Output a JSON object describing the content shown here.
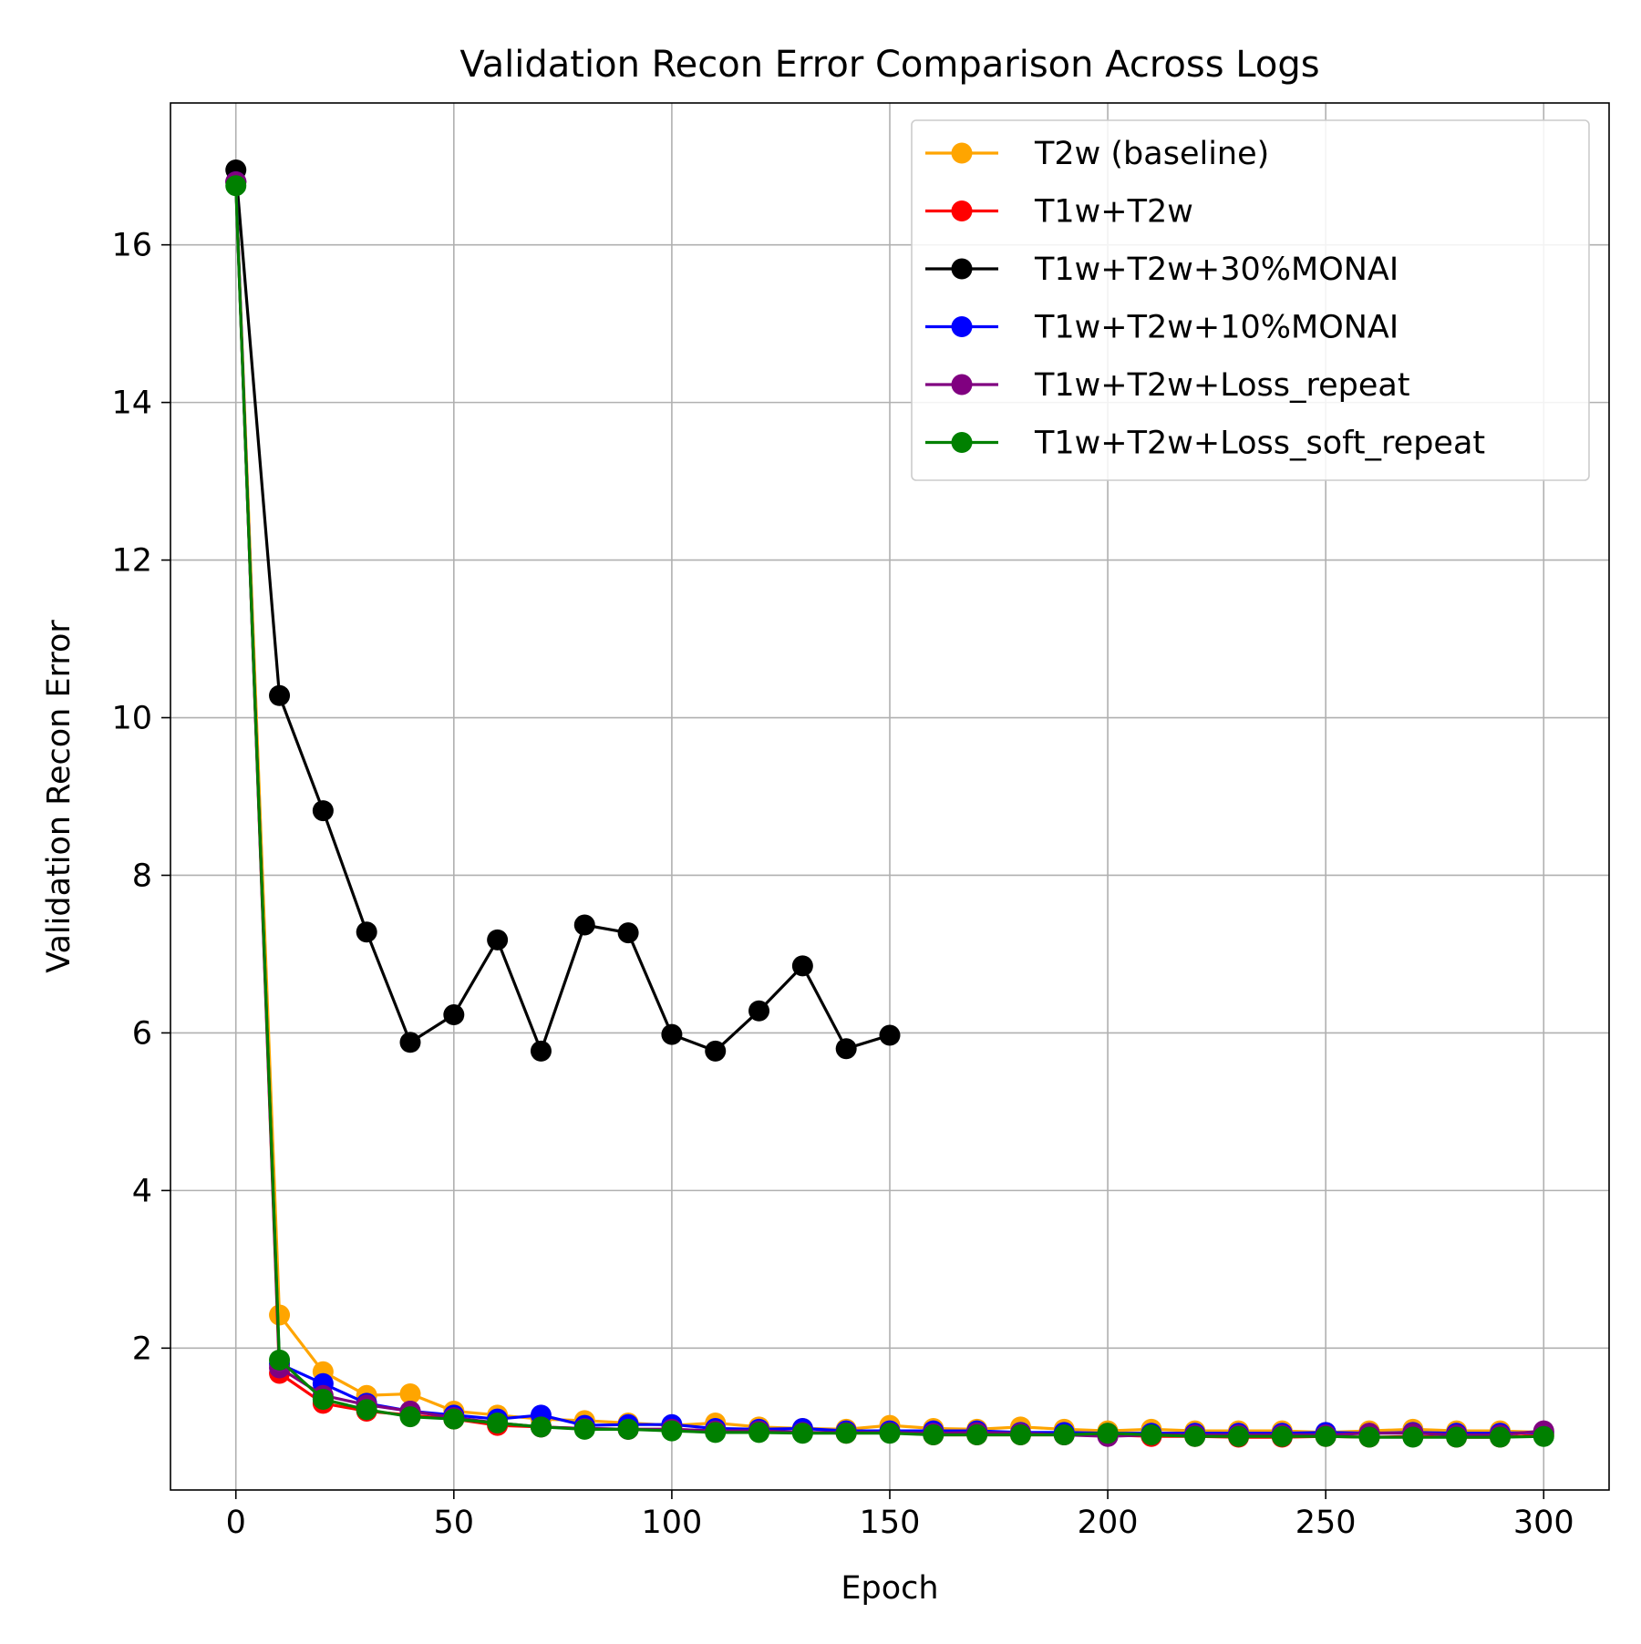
{
  "chart_data": {
    "type": "line",
    "title": "Validation Recon Error Comparison Across Logs",
    "xlabel": "Epoch",
    "ylabel": "Validation Recon Error",
    "xlim": [
      -15,
      315
    ],
    "ylim": [
      0.2,
      17.8
    ],
    "xticks": [
      0,
      50,
      100,
      150,
      200,
      250,
      300
    ],
    "yticks": [
      2,
      4,
      6,
      8,
      10,
      12,
      14,
      16
    ],
    "grid": true,
    "legend_position": "top-right",
    "series": [
      {
        "name": "T2w (baseline)",
        "color": "#ffa500",
        "x": [
          0,
          10,
          20,
          30,
          40,
          50,
          60,
          70,
          80,
          90,
          100,
          110,
          120,
          130,
          140,
          150,
          160,
          170,
          180,
          190,
          200,
          210,
          220,
          230,
          240,
          250,
          260,
          270,
          280,
          290,
          300
        ],
        "y": [
          16.8,
          2.42,
          1.7,
          1.4,
          1.42,
          1.2,
          1.15,
          1.1,
          1.08,
          1.05,
          1.02,
          1.05,
          1.0,
          0.98,
          0.97,
          1.02,
          0.98,
          0.97,
          1.0,
          0.97,
          0.95,
          0.97,
          0.95,
          0.95,
          0.95,
          0.93,
          0.95,
          0.97,
          0.95,
          0.95,
          0.93
        ]
      },
      {
        "name": "T1w+T2w",
        "color": "#ff0000",
        "x": [
          0,
          10,
          20,
          30,
          40,
          50,
          60,
          70,
          80,
          90,
          100,
          110,
          120,
          130,
          140,
          150,
          160,
          170,
          180,
          190,
          200,
          210,
          220,
          230,
          240,
          250,
          260,
          270,
          280,
          290,
          300
        ],
        "y": [
          16.8,
          1.68,
          1.3,
          1.2,
          1.15,
          1.1,
          1.02,
          1.0,
          0.98,
          0.97,
          0.97,
          0.95,
          0.95,
          0.93,
          0.92,
          0.93,
          0.9,
          0.9,
          0.9,
          0.9,
          0.9,
          0.88,
          0.88,
          0.87,
          0.87,
          0.88,
          0.87,
          0.88,
          0.87,
          0.87,
          0.9
        ]
      },
      {
        "name": "T1w+T2w+30%MONAI",
        "color": "#000000",
        "x": [
          0,
          10,
          20,
          30,
          40,
          50,
          60,
          70,
          80,
          90,
          100,
          110,
          120,
          130,
          140,
          150
        ],
        "y": [
          16.95,
          10.28,
          8.82,
          7.28,
          5.88,
          6.23,
          7.18,
          5.77,
          7.37,
          7.27,
          5.98,
          5.77,
          6.28,
          6.85,
          5.8,
          5.97
        ]
      },
      {
        "name": "T1w+T2w+10%MONAI",
        "color": "#0000ff",
        "x": [
          0,
          10,
          20,
          30,
          40,
          50,
          60,
          70,
          80,
          90,
          100,
          110,
          120,
          130,
          140,
          150,
          160,
          170,
          180,
          190,
          200,
          210,
          220,
          230,
          240,
          250,
          260,
          270,
          280,
          290,
          300
        ],
        "y": [
          16.8,
          1.8,
          1.55,
          1.3,
          1.2,
          1.15,
          1.1,
          1.15,
          1.02,
          1.03,
          1.03,
          0.98,
          0.97,
          0.98,
          0.95,
          0.95,
          0.95,
          0.95,
          0.93,
          0.93,
          0.92,
          0.92,
          0.92,
          0.92,
          0.92,
          0.93,
          0.92,
          0.93,
          0.92,
          0.92,
          0.93
        ]
      },
      {
        "name": "T1w+T2w+Loss_repeat",
        "color": "#800080",
        "x": [
          0,
          10,
          20,
          30,
          40,
          50,
          60,
          70,
          80,
          90,
          100,
          110,
          120,
          130,
          140,
          150,
          160,
          170,
          180,
          190,
          200,
          210,
          220,
          230,
          240,
          250,
          260,
          270,
          280,
          290,
          300
        ],
        "y": [
          16.8,
          1.75,
          1.4,
          1.28,
          1.2,
          1.12,
          1.05,
          1.0,
          0.98,
          0.97,
          0.97,
          0.95,
          0.95,
          0.93,
          0.93,
          0.93,
          0.92,
          0.93,
          0.92,
          0.9,
          0.88,
          0.9,
          0.9,
          0.9,
          0.9,
          0.9,
          0.92,
          0.92,
          0.9,
          0.9,
          0.95
        ]
      },
      {
        "name": "T1w+T2w+Loss_soft_repeat",
        "color": "#008000",
        "x": [
          0,
          10,
          20,
          30,
          40,
          50,
          60,
          70,
          80,
          90,
          100,
          110,
          120,
          130,
          140,
          150,
          160,
          170,
          180,
          190,
          200,
          210,
          220,
          230,
          240,
          250,
          260,
          270,
          280,
          290,
          300
        ],
        "y": [
          16.75,
          1.85,
          1.35,
          1.22,
          1.13,
          1.1,
          1.05,
          1.0,
          0.97,
          0.97,
          0.95,
          0.93,
          0.93,
          0.92,
          0.92,
          0.92,
          0.9,
          0.9,
          0.9,
          0.9,
          0.92,
          0.9,
          0.88,
          0.88,
          0.88,
          0.88,
          0.87,
          0.87,
          0.87,
          0.87,
          0.88
        ]
      }
    ]
  }
}
